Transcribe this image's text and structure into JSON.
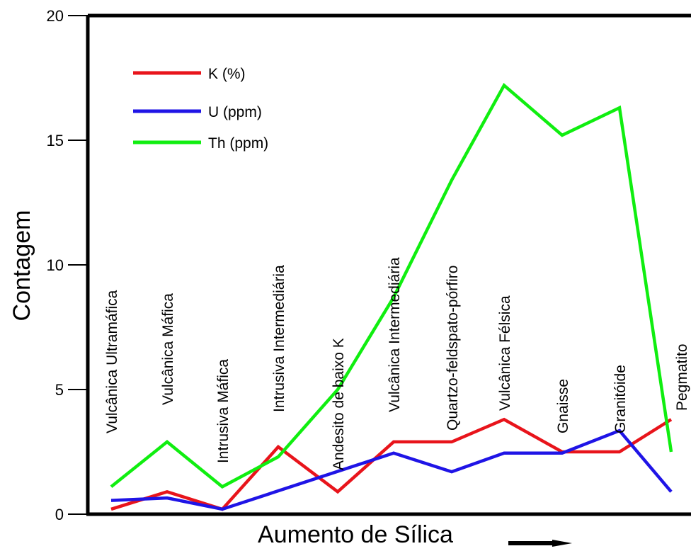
{
  "chart_data": {
    "type": "line",
    "title": "",
    "xlabel": "Aumento de Sílica",
    "ylabel": "Contagem",
    "ylim": [
      0,
      20
    ],
    "yticks": [
      "0",
      "5",
      "10",
      "15",
      "20"
    ],
    "grid": false,
    "legend_position": "top-left",
    "categories": [
      "Vulcânica Ultramáfica",
      "Vulcânica Máfica",
      "Intrusiva Máfica",
      "Intrusiva Intermediária",
      "Andesito de baixo K",
      "Vulcânica Intermediária",
      "Quartzo-feldspato-pórfiro",
      "Vulcânica Félsica",
      "Gnaisse",
      "Granitóide",
      "Pegmatito"
    ],
    "series": [
      {
        "name": "K (%)",
        "color": "#e8141b",
        "values": [
          0.2,
          0.9,
          0.2,
          2.7,
          0.9,
          2.9,
          2.9,
          3.8,
          2.5,
          2.5,
          3.8
        ]
      },
      {
        "name": "U (ppm)",
        "color": "#1f14e6",
        "values": [
          0.55,
          0.65,
          0.2,
          null,
          null,
          2.45,
          1.7,
          2.45,
          2.45,
          3.35,
          0.9
        ]
      },
      {
        "name": "Th (ppm)",
        "color": "#10ee10",
        "values": [
          1.1,
          2.9,
          1.1,
          2.3,
          5.0,
          8.7,
          13.4,
          17.2,
          15.2,
          16.3,
          2.5
        ]
      }
    ],
    "u_points": [
      {
        "x": 0,
        "y": 0.55
      },
      {
        "x": 1,
        "y": 0.65
      },
      {
        "x": 2,
        "y": 0.2
      },
      {
        "x": 5,
        "y": 2.45
      },
      {
        "x": 6,
        "y": 1.7
      },
      {
        "x": 7,
        "y": 2.45
      },
      {
        "x": 8,
        "y": 2.45
      },
      {
        "x": 9,
        "y": 3.35
      },
      {
        "x": 10,
        "y": 0.9
      }
    ]
  }
}
